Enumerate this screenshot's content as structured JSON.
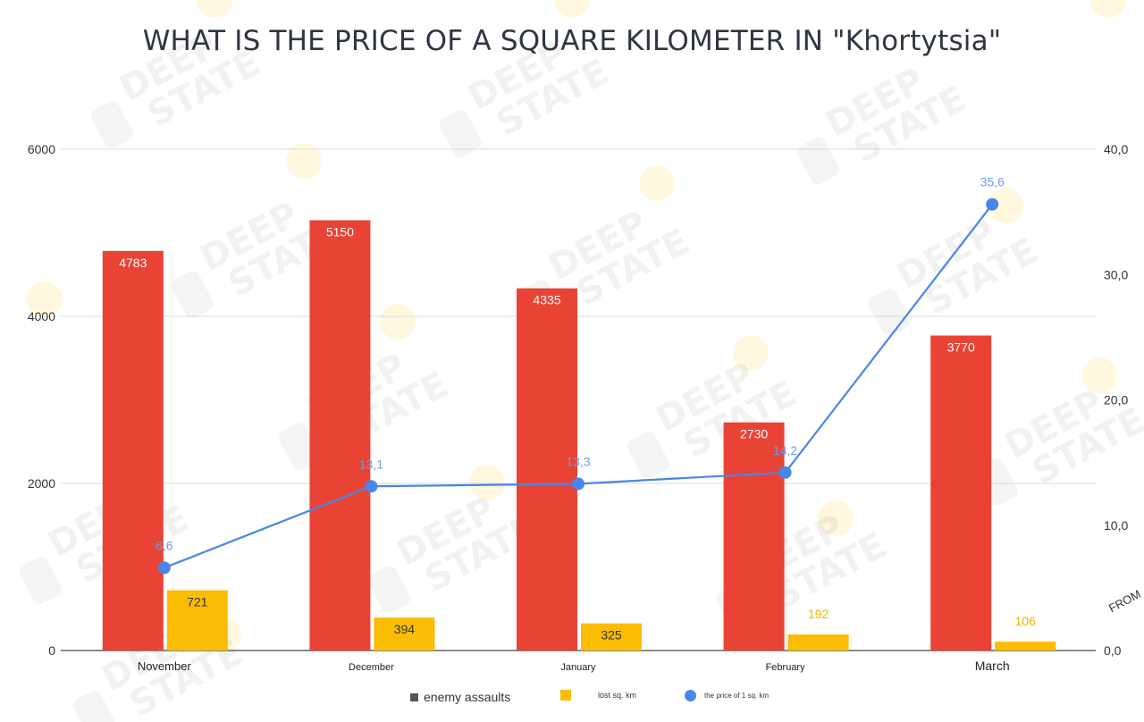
{
  "title": "WHAT IS THE PRICE OF A SQUARE KILOMETER IN \"Khortytsia\"",
  "side_note": "FROM",
  "watermark": {
    "line1": "DEEP",
    "line2": "STATE"
  },
  "colors": {
    "assaults": "#e94335",
    "lost_km": "#fbbc04",
    "price": "#4a86e8",
    "price_label": "#6d9eeb",
    "lost_label_last": "#f4b400"
  },
  "legend": [
    {
      "label": "enemy assaults",
      "swatch": "square",
      "color": "#555555"
    },
    {
      "label": "lost sq. km",
      "swatch": "square",
      "color": "#fbbc04"
    },
    {
      "label": "the price of 1 sq. km",
      "swatch": "dot",
      "color": "#4a86e8"
    }
  ],
  "chart_data": {
    "type": "bar",
    "categories": [
      "November",
      "December",
      "January",
      "February",
      "March"
    ],
    "series": [
      {
        "name": "enemy assaults",
        "type": "bar",
        "axis": "left",
        "values": [
          4783,
          5150,
          4335,
          2730,
          3770
        ],
        "labels": [
          "4783",
          "5150",
          "4335",
          "2730",
          "3770"
        ]
      },
      {
        "name": "lost sq. km",
        "type": "bar",
        "axis": "left",
        "values": [
          721,
          394,
          325,
          192,
          106
        ],
        "labels": [
          "721",
          "394",
          "325",
          "192",
          "106"
        ]
      },
      {
        "name": "the price of 1 sq. km",
        "type": "line",
        "axis": "right",
        "values": [
          6.6,
          13.1,
          13.3,
          14.2,
          35.6
        ],
        "labels": [
          "6,6",
          "13,1",
          "13,3",
          "14,2",
          "35,6"
        ]
      }
    ],
    "y_left": {
      "min": 0,
      "max": 6000,
      "ticks": [
        "0",
        "2000",
        "4000",
        "6000"
      ]
    },
    "y_right": {
      "min": 0,
      "max": 40,
      "ticks": [
        "0,0",
        "10,0",
        "20,0",
        "30,0",
        "40,0"
      ]
    },
    "grid": true,
    "legend_position": "bottom"
  }
}
